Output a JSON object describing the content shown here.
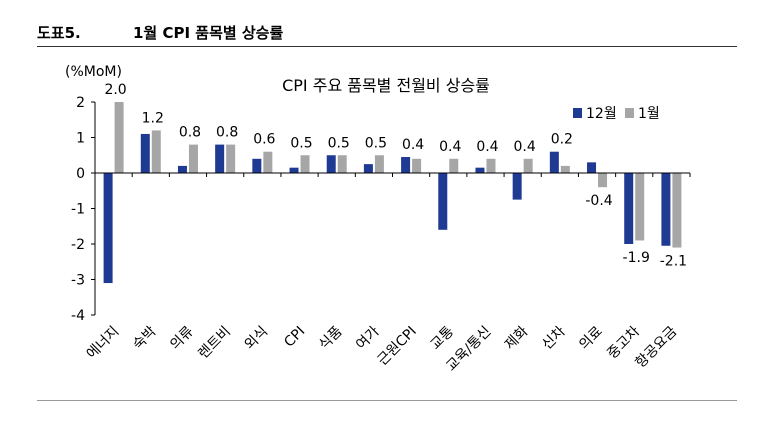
{
  "header": {
    "figure_label": "도표5.",
    "figure_title": "1월 CPI 품목별 상승률"
  },
  "colors": {
    "series_dec": "#1f3a93",
    "series_jan": "#a6a6a6",
    "axis": "#000000"
  },
  "chart_data": {
    "type": "bar",
    "title": "CPI 주요 품목별 전월비 상승률",
    "ylabel": "(%MoM)",
    "xlabel": "",
    "ylim": [
      -4,
      2
    ],
    "yticks": [
      "2",
      "1",
      "0",
      "-1",
      "-2",
      "-3",
      "-4"
    ],
    "grid": false,
    "legend_position": "top-right",
    "categories": [
      "에너지",
      "숙박",
      "의류",
      "렌트비",
      "외식",
      "CPI",
      "식품",
      "여가",
      "근원CPI",
      "교통",
      "교육/통신",
      "제화",
      "신차",
      "의료",
      "중고차",
      "항공요금"
    ],
    "series": [
      {
        "name": "12월",
        "values": [
          -3.1,
          1.1,
          0.2,
          0.8,
          0.4,
          0.15,
          0.5,
          0.25,
          0.45,
          -1.6,
          0.15,
          -0.75,
          0.6,
          0.3,
          -2.0,
          -2.05
        ]
      },
      {
        "name": "1월",
        "values": [
          2.0,
          1.2,
          0.8,
          0.8,
          0.6,
          0.5,
          0.5,
          0.5,
          0.4,
          0.4,
          0.4,
          0.4,
          0.2,
          -0.4,
          -1.9,
          -2.1
        ]
      }
    ],
    "data_labels": [
      "2.0",
      "1.2",
      "0.8",
      "0.8",
      "0.6",
      "0.5",
      "0.5",
      "0.5",
      "0.4",
      "0.4",
      "0.4",
      "0.4",
      "0.2",
      "-0.4",
      "-1.9",
      "-2.1"
    ]
  }
}
